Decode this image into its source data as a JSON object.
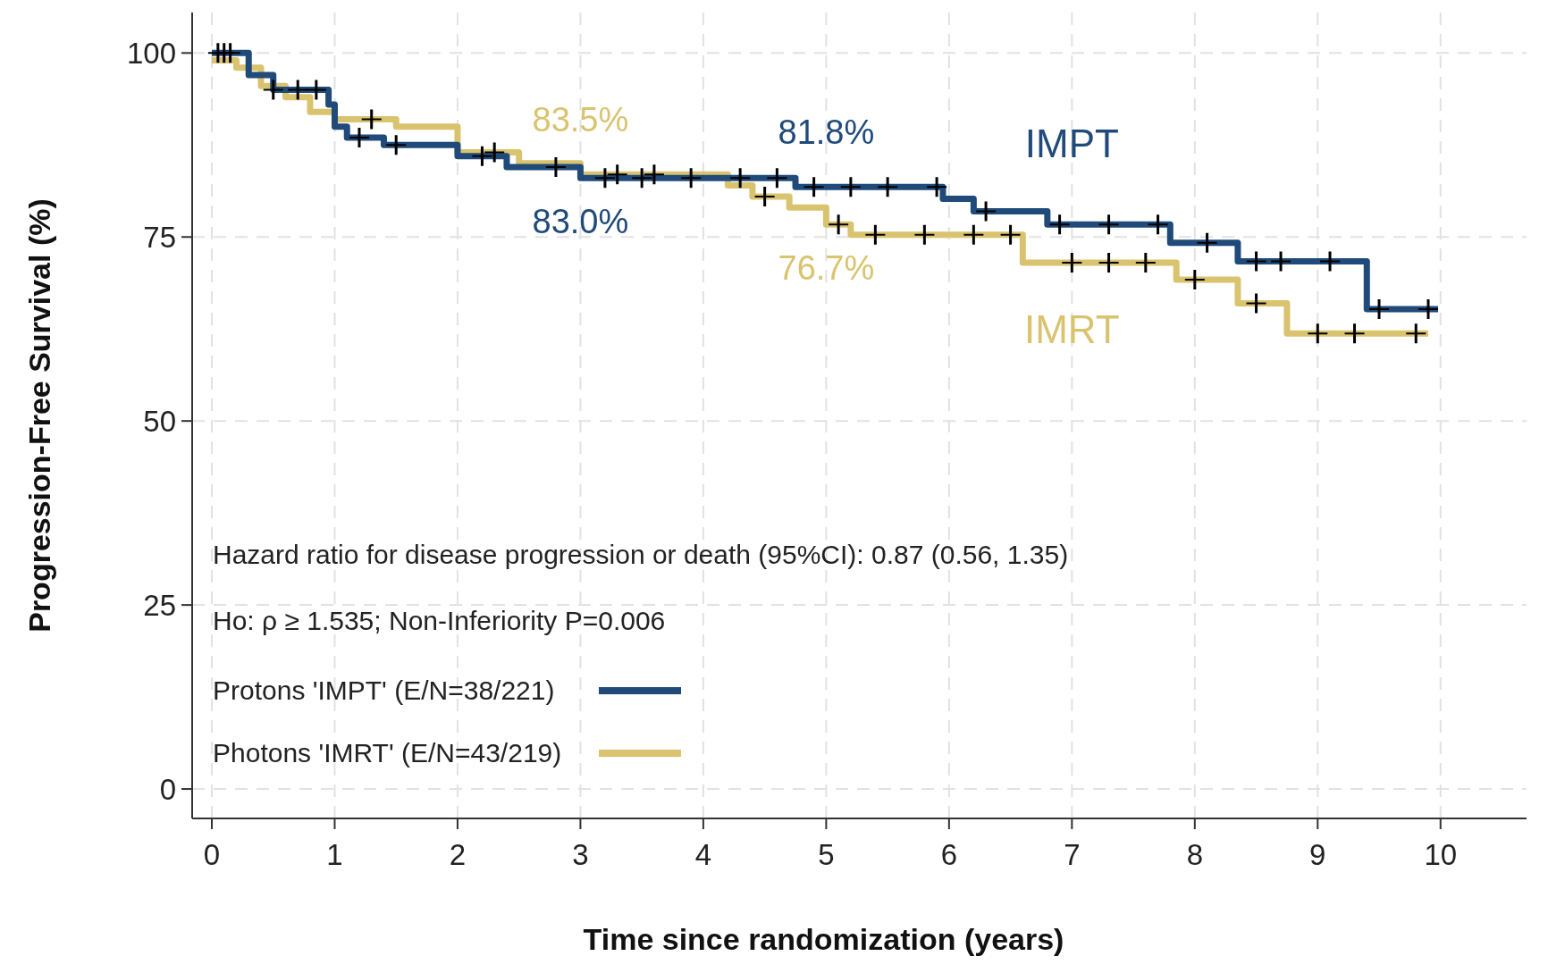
{
  "chart_data": {
    "type": "step",
    "xlabel": "Time since randomization (years)",
    "ylabel": "Progression-Free Survival (%)",
    "xlim": [
      -0.16,
      10.7
    ],
    "ylim": [
      -4,
      105.5
    ],
    "xticks": [
      0,
      1,
      2,
      3,
      4,
      5,
      6,
      7,
      8,
      9,
      10
    ],
    "yticks": [
      0,
      25,
      50,
      75,
      100
    ],
    "grid": true,
    "legend": "bottom left",
    "line_style": "solid",
    "series": [
      {
        "name": "Protons 'IMPT' (E/N=38/221)",
        "color": "#1f4a7a",
        "x": [
          0,
          0.3,
          0.5,
          0.95,
          1.0,
          1.1,
          1.4,
          2.0,
          2.4,
          3.0,
          4.75,
          5.95,
          6.2,
          6.8,
          7.8,
          8.35,
          9.4,
          9.98
        ],
        "values": [
          100,
          97,
          95,
          93,
          90,
          88.5,
          87.5,
          86,
          84.5,
          83.0,
          81.8,
          80.2,
          78.5,
          76.7,
          74.2,
          71.7,
          65.2,
          65.2
        ]
      },
      {
        "name": "Photons 'IMRT' (E/N=43/219)",
        "color": "#d9c36e",
        "x": [
          0,
          0.2,
          0.4,
          0.6,
          0.8,
          1.0,
          1.5,
          2.0,
          2.5,
          3.0,
          4.2,
          4.4,
          4.7,
          5.0,
          5.2,
          6.6,
          7.85,
          8.35,
          8.75,
          9.9
        ],
        "values": [
          99,
          98,
          95.5,
          94,
          92,
          91,
          90,
          86.5,
          85,
          83.5,
          82,
          80.5,
          79,
          76.7,
          75.3,
          71.5,
          69.2,
          66,
          61.9,
          61.9
        ]
      },
      {
        "type": "scatter",
        "marker": "cross",
        "color": "#000000",
        "x": [
          0.05,
          0.1,
          0.15,
          0.5,
          0.7,
          0.85,
          1.2,
          1.5,
          2.2,
          2.8,
          3.2,
          3.5,
          3.9,
          4.3,
          4.6,
          4.9,
          5.2,
          5.5,
          5.9,
          6.3,
          6.9,
          7.3,
          7.7,
          8.1,
          8.5,
          8.7,
          9.1,
          9.5,
          9.9
        ],
        "values": [
          100,
          100,
          100,
          95,
          95,
          95,
          88.5,
          87.5,
          86,
          84.5,
          83,
          83,
          83,
          83,
          83,
          81.8,
          81.8,
          81.8,
          81.8,
          78.5,
          76.7,
          76.7,
          76.7,
          74.2,
          71.7,
          71.7,
          71.7,
          65.2,
          65.2
        ]
      },
      {
        "type": "scatter",
        "marker": "cross",
        "color": "#000000",
        "x": [
          1.3,
          2.3,
          3.3,
          3.6,
          4.5,
          5.1,
          5.4,
          5.8,
          6.2,
          6.5,
          7.0,
          7.3,
          7.6,
          8.0,
          8.5,
          9.0,
          9.3,
          9.8
        ],
        "values": [
          91,
          86.5,
          83.5,
          83.5,
          80.5,
          76.7,
          75.3,
          75.3,
          75.3,
          75.3,
          71.5,
          71.5,
          71.5,
          69.2,
          66,
          61.9,
          61.9,
          61.9
        ]
      }
    ],
    "annotations": [
      {
        "text": "83.5%",
        "x": 3,
        "y": 83.5
      },
      {
        "text": "83.0%",
        "x": 3,
        "y": 83.0
      },
      {
        "text": "81.8%",
        "x": 5,
        "y": 81.8
      },
      {
        "text": "76.7%",
        "x": 5,
        "y": 76.7
      },
      {
        "text": "IMPT",
        "x": 7,
        "y": 76.7
      },
      {
        "text": "IMRT",
        "x": 7,
        "y": 71.5
      },
      "Hazard ratio for disease progression or death (95%CI): 0.87 (0.56, 1.35)",
      "Ho: ρ ≥ 1.535; Non-Inferiority P=0.006"
    ]
  }
}
